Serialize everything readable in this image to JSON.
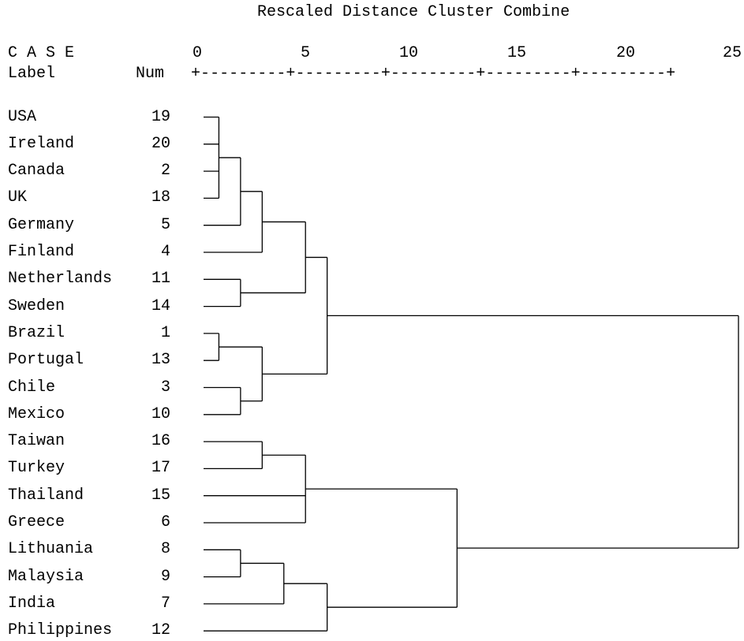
{
  "title": "Rescaled Distance Cluster Combine",
  "header": {
    "case": "C A S E",
    "label": "Label",
    "num": "Num",
    "scale": "+---------+---------+---------+---------+---------+"
  },
  "scale_ticks": [
    "0",
    "5",
    "10",
    "15",
    "20",
    "25"
  ],
  "chart_data": {
    "type": "dendrogram",
    "title": "Rescaled Distance Cluster Combine",
    "xlim": [
      0,
      25
    ],
    "cases": [
      {
        "label": "USA",
        "num": "19"
      },
      {
        "label": "Ireland",
        "num": "20"
      },
      {
        "label": "Canada",
        "num": "2"
      },
      {
        "label": "UK",
        "num": "18"
      },
      {
        "label": "Germany",
        "num": "5"
      },
      {
        "label": "Finland",
        "num": "4"
      },
      {
        "label": "Netherlands",
        "num": "11"
      },
      {
        "label": "Sweden",
        "num": "14"
      },
      {
        "label": "Brazil",
        "num": "1"
      },
      {
        "label": "Portugal",
        "num": "13"
      },
      {
        "label": "Chile",
        "num": "3"
      },
      {
        "label": "Mexico",
        "num": "10"
      },
      {
        "label": "Taiwan",
        "num": "16"
      },
      {
        "label": "Turkey",
        "num": "17"
      },
      {
        "label": "Thailand",
        "num": "15"
      },
      {
        "label": "Greece",
        "num": "6"
      },
      {
        "label": "Lithuania",
        "num": "8"
      },
      {
        "label": "Malaysia",
        "num": "9"
      },
      {
        "label": "India",
        "num": "7"
      },
      {
        "label": "Philippines",
        "num": "12"
      }
    ],
    "merges": [
      {
        "id": "m1",
        "children": [
          "c0",
          "c1",
          "c2",
          "c3"
        ],
        "distance": 1
      },
      {
        "id": "m2",
        "children": [
          "m1",
          "c4"
        ],
        "distance": 2
      },
      {
        "id": "m3",
        "children": [
          "m2",
          "c5"
        ],
        "distance": 3
      },
      {
        "id": "m4",
        "children": [
          "c6",
          "c7"
        ],
        "distance": 2
      },
      {
        "id": "m5",
        "children": [
          "m3",
          "m4"
        ],
        "distance": 5
      },
      {
        "id": "m6",
        "children": [
          "c8",
          "c9"
        ],
        "distance": 1
      },
      {
        "id": "m7",
        "children": [
          "c10",
          "c11"
        ],
        "distance": 2
      },
      {
        "id": "m8",
        "children": [
          "m6",
          "m7"
        ],
        "distance": 3
      },
      {
        "id": "m9",
        "children": [
          "m5",
          "m8"
        ],
        "distance": 6
      },
      {
        "id": "m10",
        "children": [
          "c12",
          "c13"
        ],
        "distance": 3
      },
      {
        "id": "m11",
        "children": [
          "m10",
          "c14",
          "c15"
        ],
        "distance": 5
      },
      {
        "id": "m12",
        "children": [
          "c16",
          "c17"
        ],
        "distance": 2
      },
      {
        "id": "m13",
        "children": [
          "m12",
          "c18"
        ],
        "distance": 4
      },
      {
        "id": "m14",
        "children": [
          "m13",
          "c19"
        ],
        "distance": 6
      },
      {
        "id": "m15",
        "children": [
          "m11",
          "m14"
        ],
        "distance": 12
      },
      {
        "id": "m16",
        "children": [
          "m9",
          "m15"
        ],
        "distance": 25
      }
    ]
  }
}
